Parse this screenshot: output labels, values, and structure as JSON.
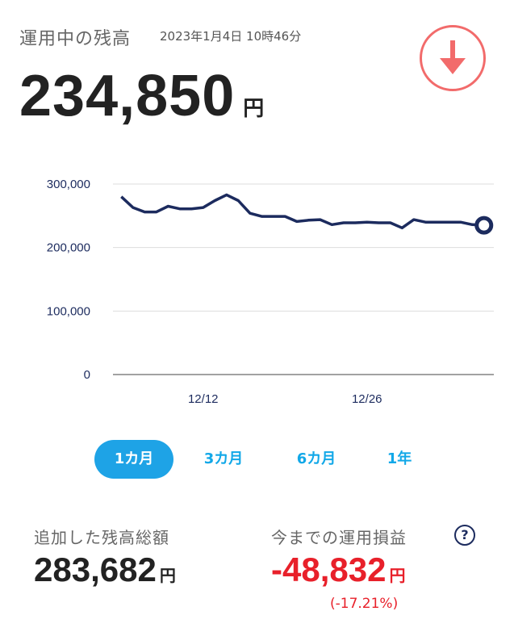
{
  "header": {
    "title": "運用中の残高",
    "timestamp": "2023年1月4日 10時46分",
    "balance": "234,850",
    "currency": "円",
    "download_icon": "arrow-down-icon"
  },
  "colors": {
    "line": "#1c2b5e",
    "accent": "#1ea3e6",
    "negative": "#e8202a",
    "download": "#f26b6b",
    "grid": "#dddddd"
  },
  "chart_data": {
    "type": "line",
    "ylim": [
      0,
      300000
    ],
    "yticks": [
      {
        "v": 300000,
        "label": "300,000"
      },
      {
        "v": 200000,
        "label": "200,000"
      },
      {
        "v": 100000,
        "label": "100,000"
      },
      {
        "v": 0,
        "label": "0"
      }
    ],
    "xticks": [
      {
        "i": 7,
        "label": "12/12"
      },
      {
        "i": 21,
        "label": "12/26"
      }
    ],
    "values": [
      280000,
      263000,
      256000,
      256000,
      265000,
      261000,
      261000,
      263000,
      274000,
      283000,
      274000,
      254000,
      249000,
      249000,
      249000,
      241000,
      243000,
      244000,
      236000,
      239000,
      239000,
      240000,
      239000,
      239000,
      231000,
      244000,
      240000,
      240000,
      240000,
      240000,
      236000,
      235000
    ],
    "grid": true
  },
  "tabs": [
    {
      "label": "1カ月",
      "active": true
    },
    {
      "label": "3カ月",
      "active": false
    },
    {
      "label": "6カ月",
      "active": false
    },
    {
      "label": "1年",
      "active": false
    }
  ],
  "stats": {
    "added_label": "追加した残高総額",
    "added_value": "283,682",
    "profit_label": "今までの運用損益",
    "profit_value": "-48,832",
    "profit_percent": "(-17.21%)",
    "currency": "円",
    "help_label": "?"
  }
}
